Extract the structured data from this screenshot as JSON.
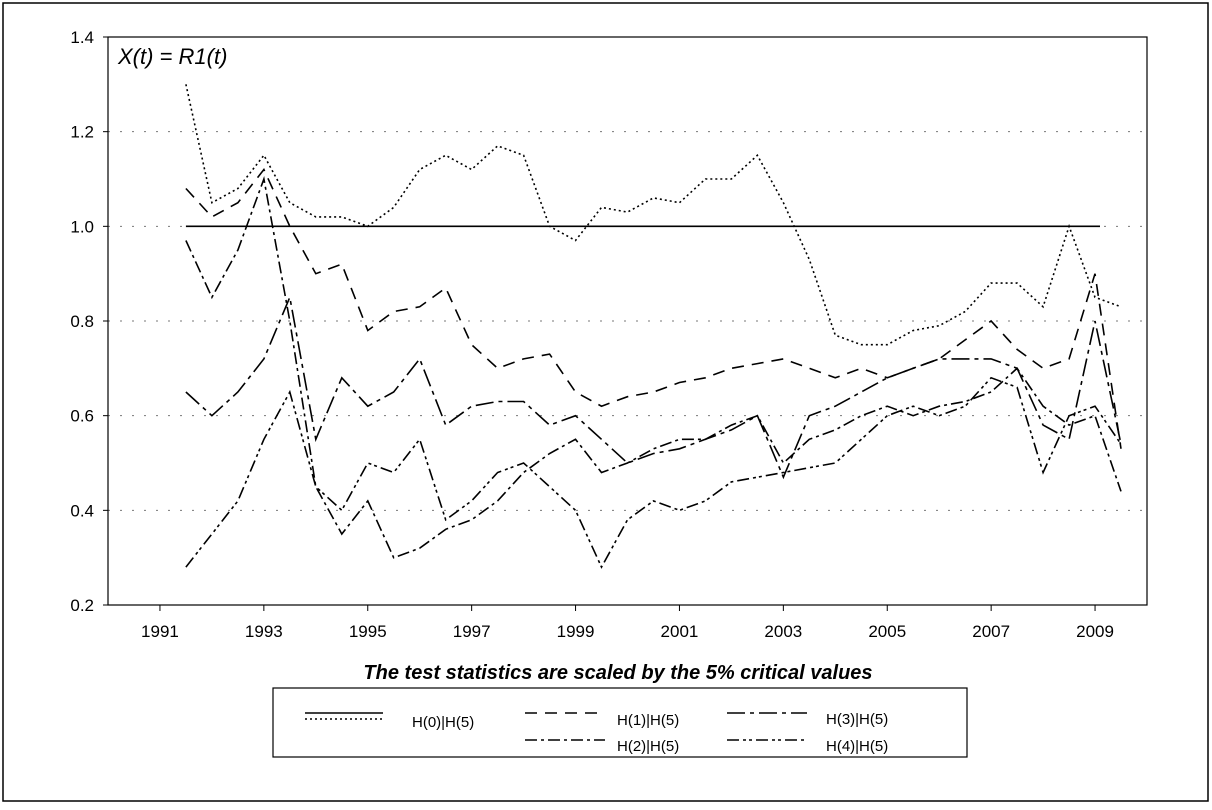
{
  "chart_data": {
    "type": "line",
    "annotation": "X(t) = R1(t)",
    "x_label": "The test statistics are scaled by the 5% critical values",
    "xlim": [
      1990,
      2010
    ],
    "xticks": [
      1991,
      1993,
      1995,
      1997,
      1999,
      2001,
      2003,
      2005,
      2007,
      2009
    ],
    "ylim": [
      0.2,
      1.4
    ],
    "yticks": [
      0.2,
      0.4,
      0.6,
      0.8,
      {
        "value": 1,
        "label": "1.0"
      },
      1.2,
      1.4
    ],
    "grid": true,
    "hline": 1,
    "x": [
      1991.5,
      1992,
      1992.5,
      1993,
      1993.5,
      1994,
      1994.5,
      1995,
      1995.5,
      1996,
      1996.5,
      1997,
      1997.5,
      1998,
      1998.5,
      1999,
      1999.5,
      2000,
      2000.5,
      2001,
      2001.5,
      2002,
      2002.5,
      2003,
      2003.5,
      2004,
      2004.5,
      2005,
      2005.5,
      2006,
      2006.5,
      2007,
      2007.5,
      2008,
      2008.5,
      2009,
      2009.5
    ],
    "series": [
      {
        "name": "H(0)|H(5)",
        "color": "#000000",
        "dash": "2,3",
        "values": [
          1.3,
          1.05,
          1.08,
          1.15,
          1.05,
          1.02,
          1.02,
          1.0,
          1.04,
          1.12,
          1.15,
          1.12,
          1.17,
          1.15,
          1.0,
          0.97,
          1.04,
          1.03,
          1.06,
          1.05,
          1.1,
          1.1,
          1.15,
          1.05,
          0.93,
          0.77,
          0.75,
          0.75,
          0.78,
          0.79,
          0.82,
          0.88,
          0.88,
          0.83,
          1.0,
          0.85,
          0.83
        ]
      },
      {
        "name": "H(1)|H(5)",
        "color": "#000000",
        "dash": "12,8",
        "values": [
          1.08,
          1.02,
          1.05,
          1.12,
          1.0,
          0.9,
          0.92,
          0.78,
          0.82,
          0.83,
          0.87,
          0.75,
          0.7,
          0.72,
          0.73,
          0.65,
          0.62,
          0.64,
          0.65,
          0.67,
          0.68,
          0.7,
          0.71,
          0.72,
          0.7,
          0.68,
          0.7,
          0.68,
          0.7,
          0.72,
          0.76,
          0.8,
          0.74,
          0.7,
          0.72,
          0.9,
          0.53
        ]
      },
      {
        "name": "H(2)|H(5)",
        "color": "#000000",
        "dash": "12,4,3,4",
        "values": [
          0.97,
          0.85,
          0.95,
          1.1,
          0.8,
          0.45,
          0.35,
          0.42,
          0.3,
          0.32,
          0.36,
          0.38,
          0.42,
          0.48,
          0.52,
          0.55,
          0.48,
          0.5,
          0.53,
          0.55,
          0.55,
          0.58,
          0.6,
          0.5,
          0.55,
          0.57,
          0.6,
          0.62,
          0.6,
          0.62,
          0.63,
          0.65,
          0.7,
          0.62,
          0.58,
          0.6,
          0.44
        ]
      },
      {
        "name": "H(3)|H(5)",
        "color": "#000000",
        "dash": "18,5,4,5",
        "values": [
          0.65,
          0.6,
          0.65,
          0.72,
          0.85,
          0.55,
          0.68,
          0.62,
          0.65,
          0.72,
          0.58,
          0.62,
          0.63,
          0.63,
          0.58,
          0.6,
          0.55,
          0.5,
          0.52,
          0.53,
          0.55,
          0.57,
          0.6,
          0.47,
          0.6,
          0.62,
          0.65,
          0.68,
          0.7,
          0.72,
          0.72,
          0.72,
          0.7,
          0.58,
          0.55,
          0.8,
          0.54
        ]
      },
      {
        "name": "H(4)|H(5)",
        "color": "#000000",
        "dash": "12,4,3,3,3,4",
        "values": [
          0.28,
          0.35,
          0.42,
          0.55,
          0.65,
          0.45,
          0.4,
          0.5,
          0.48,
          0.55,
          0.38,
          0.42,
          0.48,
          0.5,
          0.45,
          0.4,
          0.28,
          0.38,
          0.42,
          0.4,
          0.42,
          0.46,
          0.47,
          0.48,
          0.49,
          0.5,
          0.55,
          0.6,
          0.62,
          0.6,
          0.62,
          0.68,
          0.66,
          0.48,
          0.6,
          0.62,
          0.54
        ]
      }
    ]
  }
}
